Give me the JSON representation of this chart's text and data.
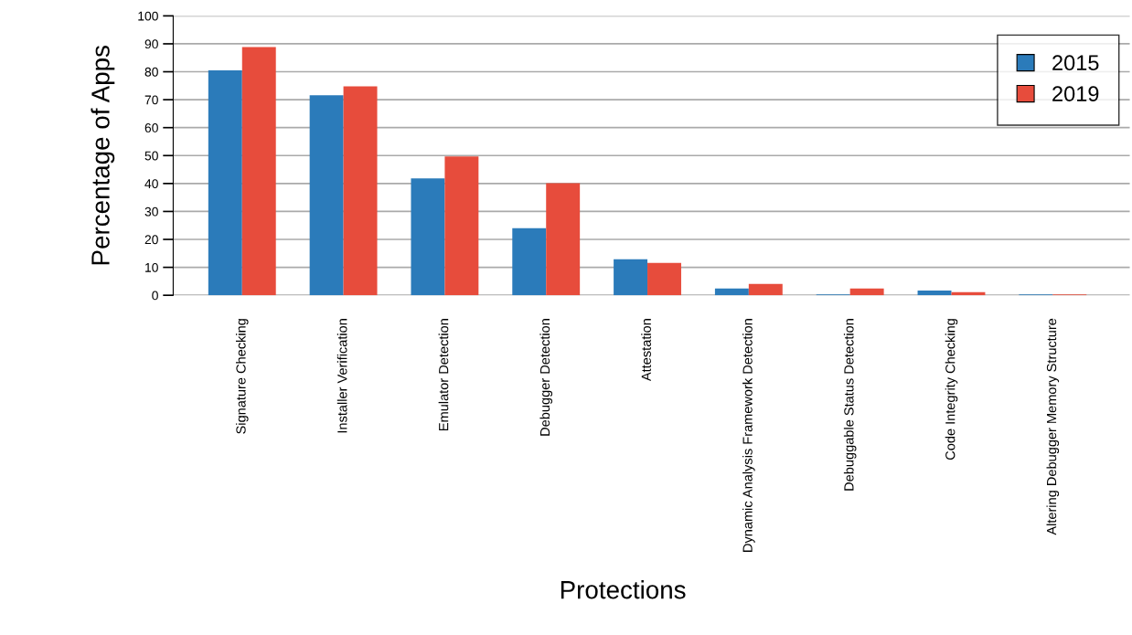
{
  "chart_data": {
    "type": "bar",
    "xlabel": "Protections",
    "ylabel": "Percentage of Apps",
    "categories": [
      "Signature Checking",
      "Installer Verification",
      "Emulator Detection",
      "Debugger Detection",
      "Attestation",
      "Dynamic Analysis Framework Detection",
      "Debuggable Status Detection",
      "Code Integrity Checking",
      "Altering Debugger Memory Structure"
    ],
    "series": [
      {
        "name": "2015",
        "color": "#2b7bba",
        "values": [
          80.5,
          71.6,
          41.8,
          24.0,
          12.9,
          2.4,
          0.3,
          1.7,
          0.3
        ]
      },
      {
        "name": "2019",
        "color": "#e74c3c",
        "values": [
          88.8,
          74.8,
          49.7,
          40.1,
          11.6,
          4.1,
          2.4,
          1.1,
          0.3
        ]
      }
    ],
    "ylim": [
      0,
      100
    ],
    "yticks": [
      0,
      10,
      20,
      30,
      40,
      50,
      60,
      70,
      80,
      90,
      100
    ],
    "grid": "y",
    "legend": "top right"
  }
}
